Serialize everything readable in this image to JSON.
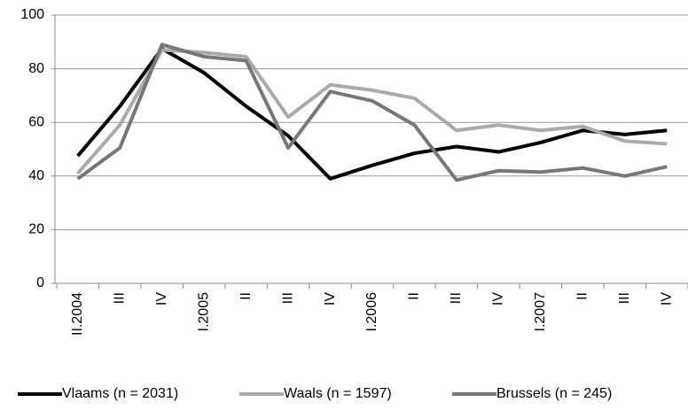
{
  "chart_data": {
    "type": "line",
    "categories": [
      "II.2004",
      "III",
      "IV",
      "I.2005",
      "II",
      "III",
      "IV",
      "I.2006",
      "II",
      "III",
      "IV",
      "I.2007",
      "II",
      "III",
      "IV"
    ],
    "series": [
      {
        "name": "Vlaams (n = 2031)",
        "color": "#000000",
        "values": [
          47.5,
          66,
          87.5,
          78.5,
          66,
          55,
          39,
          44,
          48.5,
          51,
          49,
          52.5,
          57,
          55.5,
          57
        ]
      },
      {
        "name": "Waals  (n = 1597)",
        "color": "#aaaaaa",
        "values": [
          41,
          59,
          87,
          86,
          84.5,
          62,
          74,
          72,
          69,
          57,
          59,
          57,
          58.5,
          53,
          52
        ]
      },
      {
        "name": "Brussels (n = 245)",
        "color": "#777777",
        "values": [
          39,
          50.5,
          89,
          84.5,
          83,
          50.5,
          71.5,
          68,
          59,
          38.5,
          42,
          41.5,
          43,
          40,
          43.5
        ]
      }
    ],
    "ylim": [
      0,
      100
    ],
    "yticks": [
      0,
      20,
      40,
      60,
      80,
      100
    ],
    "grid": true,
    "legend": "bottom"
  }
}
